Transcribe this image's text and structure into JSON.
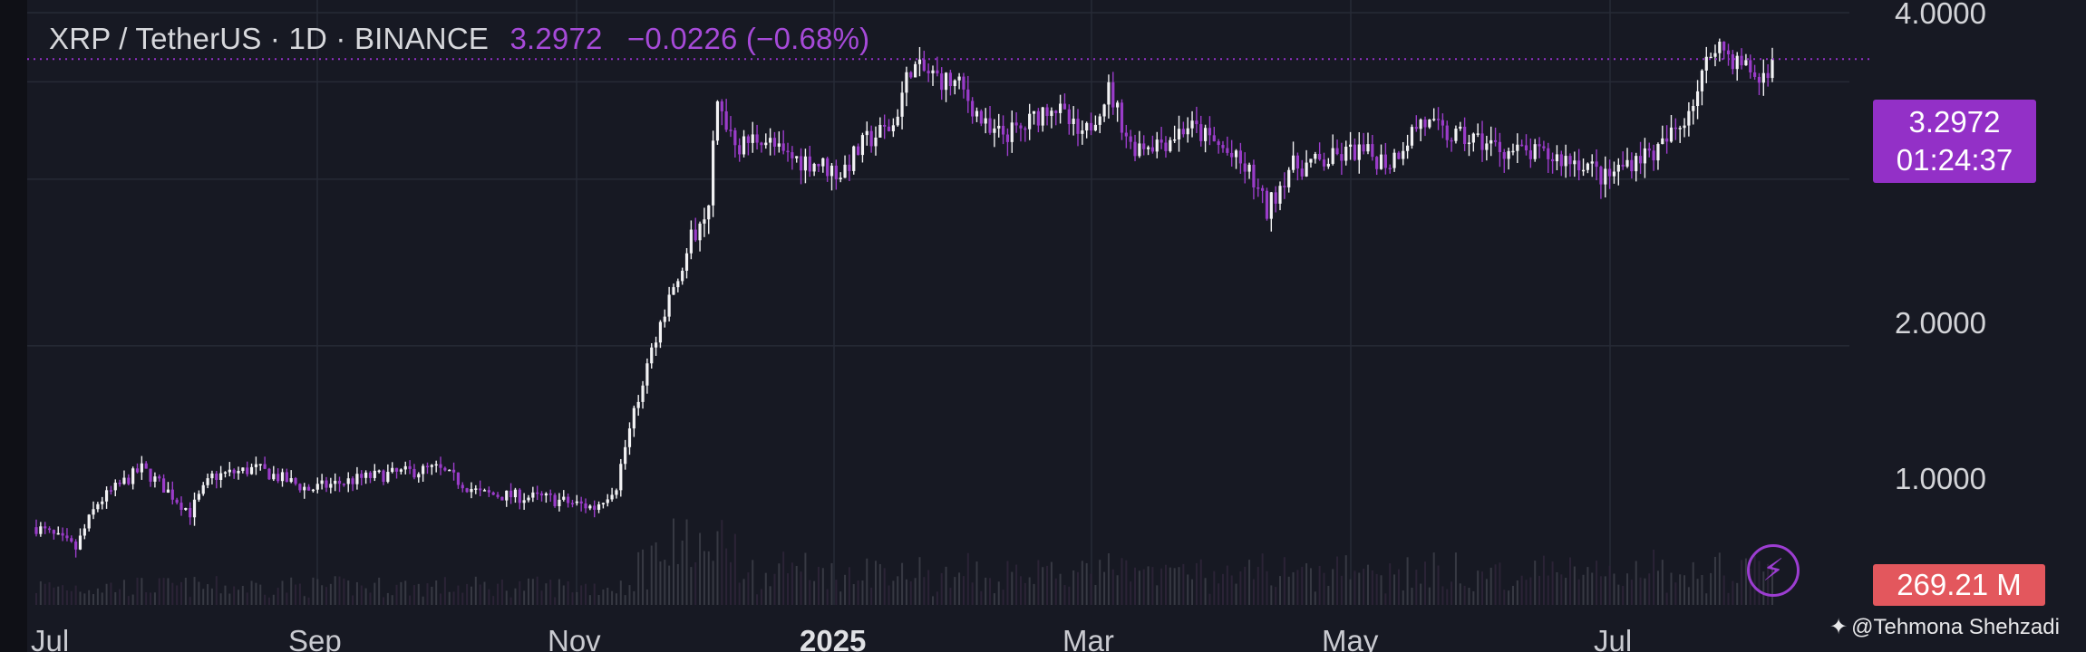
{
  "header": {
    "symbol": "XRP / TetherUS · 1D · BINANCE",
    "price": "3.2972",
    "change": "−0.0226 (−0.68%)"
  },
  "price_tag": {
    "price": "3.2972",
    "countdown": "01:24:37"
  },
  "volume_tag": "269.21 M",
  "watermark": "@Tehmona Shehzadi",
  "colors": {
    "background": "#171923",
    "up_candle": "#f2f2f4",
    "down_candle": "#9a3cc9",
    "accent": "#9330c7",
    "volume_tag": "#e3575d",
    "grid": "#272a36"
  },
  "icons": {
    "alert": "lightning-bolt-icon",
    "watermark": "diamond-logo-icon"
  },
  "chart_data": {
    "type": "candlestick",
    "symbol": "XRP / TetherUS",
    "interval": "1D",
    "exchange": "BINANCE",
    "y_axis": {
      "side": "right",
      "ticks": [
        "4.0000",
        "2.0000",
        "1.0000"
      ],
      "ylim": [
        0.42,
        4.0
      ]
    },
    "x_axis": {
      "ticks": [
        "Jul",
        "Sep",
        "Nov",
        "2025",
        "Mar",
        "May",
        "Jul"
      ],
      "xlim": [
        "2024-07-01",
        "2025-07-31"
      ]
    },
    "last_price": 3.2972,
    "price_line": "dotted",
    "grid": true,
    "series": [
      {
        "type": "close",
        "points": [
          [
            "2024-07-01",
            0.47
          ],
          [
            "2024-07-10",
            0.43
          ],
          [
            "2024-07-15",
            0.52
          ],
          [
            "2024-07-25",
            0.6
          ],
          [
            "2024-08-05",
            0.5
          ],
          [
            "2024-08-10",
            0.58
          ],
          [
            "2024-08-20",
            0.6
          ],
          [
            "2024-09-01",
            0.55
          ],
          [
            "2024-09-15",
            0.58
          ],
          [
            "2024-09-30",
            0.6
          ],
          [
            "2024-10-10",
            0.54
          ],
          [
            "2024-10-25",
            0.53
          ],
          [
            "2024-11-05",
            0.51
          ],
          [
            "2024-11-10",
            0.56
          ],
          [
            "2024-11-15",
            0.8
          ],
          [
            "2024-11-20",
            1.1
          ],
          [
            "2024-11-25",
            1.4
          ],
          [
            "2024-12-01",
            1.85
          ],
          [
            "2024-12-03",
            2.7
          ],
          [
            "2024-12-08",
            2.3
          ],
          [
            "2024-12-13",
            2.4
          ],
          [
            "2024-12-18",
            2.2
          ],
          [
            "2024-12-25",
            2.15
          ],
          [
            "2024-12-31",
            2.05
          ],
          [
            "2025-01-06",
            2.35
          ],
          [
            "2025-01-12",
            2.5
          ],
          [
            "2025-01-16",
            3.2
          ],
          [
            "2025-01-20",
            3.1
          ],
          [
            "2025-01-27",
            2.95
          ],
          [
            "2025-02-03",
            2.4
          ],
          [
            "2025-02-10",
            2.45
          ],
          [
            "2025-02-17",
            2.75
          ],
          [
            "2025-02-24",
            2.35
          ],
          [
            "2025-03-02",
            2.9
          ],
          [
            "2025-03-07",
            2.3
          ],
          [
            "2025-03-15",
            2.35
          ],
          [
            "2025-03-20",
            2.5
          ],
          [
            "2025-03-27",
            2.3
          ],
          [
            "2025-04-03",
            2.05
          ],
          [
            "2025-04-07",
            1.75
          ],
          [
            "2025-04-12",
            2.1
          ],
          [
            "2025-04-20",
            2.15
          ],
          [
            "2025-04-27",
            2.25
          ],
          [
            "2025-05-05",
            2.15
          ],
          [
            "2025-05-12",
            2.55
          ],
          [
            "2025-05-18",
            2.4
          ],
          [
            "2025-05-25",
            2.35
          ],
          [
            "2025-06-01",
            2.25
          ],
          [
            "2025-06-10",
            2.2
          ],
          [
            "2025-06-18",
            2.15
          ],
          [
            "2025-06-23",
            2.0
          ],
          [
            "2025-06-30",
            2.2
          ],
          [
            "2025-07-05",
            2.25
          ],
          [
            "2025-07-10",
            2.5
          ],
          [
            "2025-07-14",
            2.9
          ],
          [
            "2025-07-18",
            3.55
          ],
          [
            "2025-07-22",
            3.3
          ],
          [
            "2025-07-26",
            3.15
          ],
          [
            "2025-07-28",
            3.0
          ],
          [
            "2025-07-31",
            3.2972
          ]
        ]
      }
    ]
  }
}
